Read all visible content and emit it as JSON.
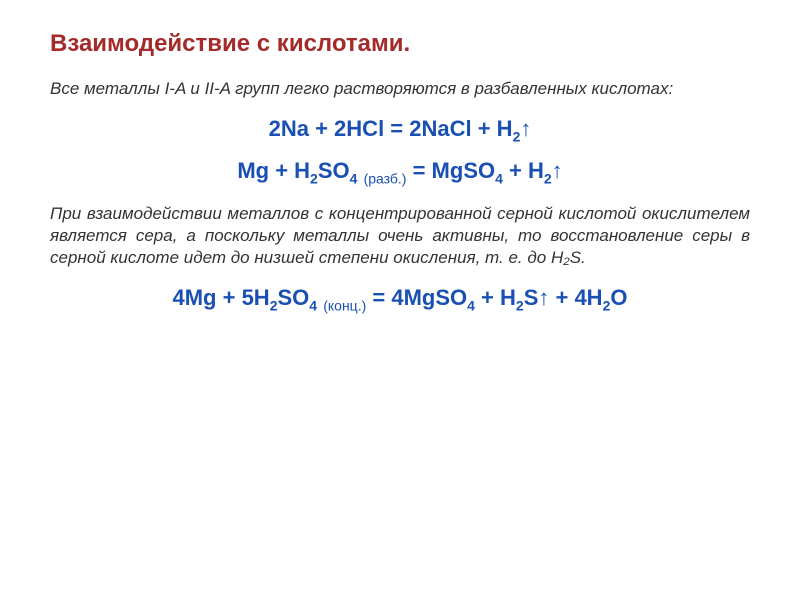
{
  "slide": {
    "title": "Взаимодействие с кислотами.",
    "para1": "Все металлы I-A и II-A групп легко растворяются в разбавленных кислотах:",
    "formula1_html": "2Na + 2HCl = 2NaCl + H<span class='sub'>2</span><span class='arrow'>↑</span>",
    "formula2_html": "Mg + H<span class='sub'>2</span>SO<span class='sub'>4</span> <span class='note'>(разб.)</span> = MgSO<span class='sub'>4</span> + H<span class='sub'>2</span><span class='arrow'>↑</span>",
    "para2": "При взаимодействии металлов с концентрированной серной кислотой окислителем является сера, а поскольку металлы очень активны, то восстановление серы в серной кислоте идет до низшей степени окисления, т. е. до H₂S.",
    "formula3_html": "4Mg + 5H<span class='sub'>2</span>SO<span class='sub'>4</span> <span class='note'>(конц.)</span> = 4MgSO<span class='sub'>4</span> + H<span class='sub'>2</span>S<span class='arrow'>↑</span> + 4H<span class='sub'>2</span>O"
  },
  "style": {
    "title_color": "#a52a2a",
    "formula_color": "#1a4fb3",
    "text_color": "#333333",
    "background": "#ffffff",
    "title_fontsize": 24,
    "para_fontsize": 17,
    "formula_fontsize": 22
  }
}
